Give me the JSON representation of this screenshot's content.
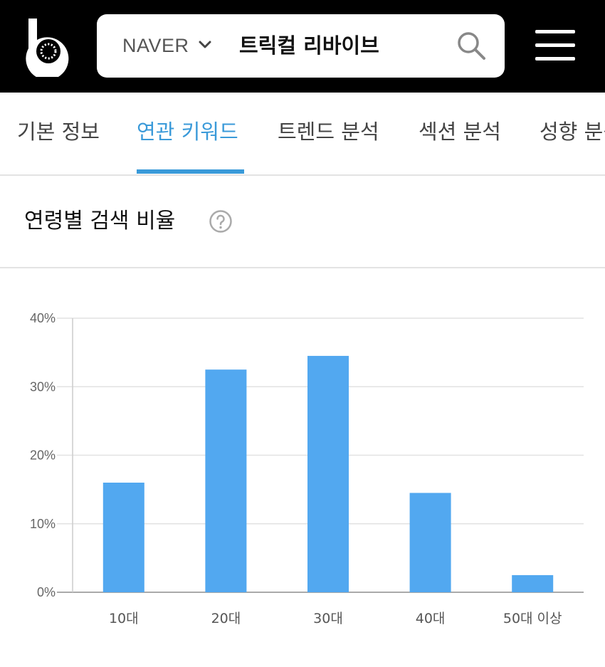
{
  "header": {
    "logo_icon": "b-logo-icon",
    "search": {
      "engine": "NAVER",
      "query": "트릭컬 리바이브",
      "engine_dropdown_icon": "chevron-down-icon",
      "search_icon": "search-icon"
    },
    "menu_icon": "hamburger-menu-icon"
  },
  "tabs": [
    {
      "label": "기본 정보",
      "active": false
    },
    {
      "label": "연관 키워드",
      "active": true
    },
    {
      "label": "트렌드 분석",
      "active": false
    },
    {
      "label": "섹션 분석",
      "active": false
    },
    {
      "label": "성향 분석",
      "active": false
    }
  ],
  "section": {
    "title": "연령별 검색 비율",
    "help_icon": "question-circle-icon"
  },
  "colors": {
    "header_bg": "#000000",
    "accent": "#3a9ad9",
    "bar": "#52a8f0"
  },
  "chart_data": {
    "type": "bar",
    "categories": [
      "10대",
      "20대",
      "30대",
      "40대",
      "50대 이상"
    ],
    "values": [
      16,
      32.5,
      34.5,
      14.5,
      2.5
    ],
    "title": "",
    "xlabel": "",
    "ylabel": "",
    "ylim": [
      0,
      40
    ],
    "yticks": [
      "0%",
      "10%",
      "20%",
      "30%",
      "40%"
    ],
    "grid": true
  }
}
